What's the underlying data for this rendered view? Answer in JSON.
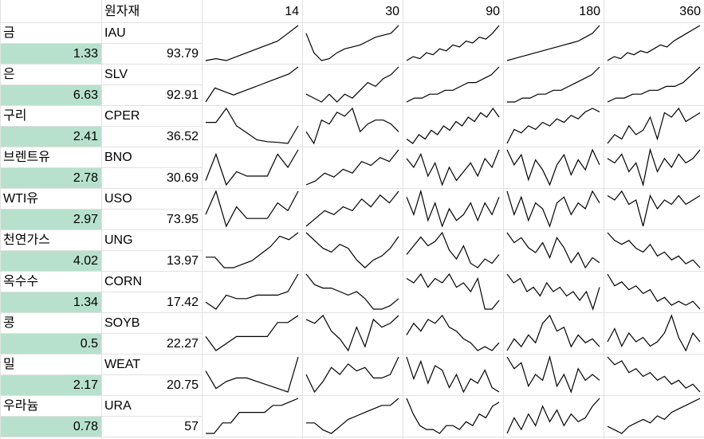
{
  "header": {
    "label": "원자재",
    "periods": [
      "14",
      "30",
      "90",
      "180",
      "360"
    ]
  },
  "rows": [
    {
      "name": "금",
      "change": 1.33,
      "ticker": "IAU",
      "price": 93.79,
      "sparklines": [
        [
          1,
          1.5,
          1,
          2,
          3,
          4,
          5,
          6,
          8,
          10
        ],
        [
          8,
          3,
          1,
          1.5,
          3,
          4,
          4.5,
          5,
          6,
          7,
          7.5,
          8,
          10
        ],
        [
          1,
          2,
          1.5,
          3,
          2.5,
          4,
          3.5,
          5,
          4.5,
          6,
          5.5,
          7,
          6.5,
          8,
          10
        ],
        [
          1,
          1.5,
          2,
          2.5,
          3,
          3.5,
          4,
          4.5,
          5,
          5.5,
          6,
          7,
          8,
          10
        ],
        [
          1,
          2,
          1.5,
          3,
          2.5,
          3.5,
          3,
          4,
          5,
          4.5,
          6,
          7,
          8,
          9,
          10
        ]
      ]
    },
    {
      "name": "은",
      "change": 6.63,
      "ticker": "SLV",
      "price": 92.91,
      "sparklines": [
        [
          0,
          4,
          3,
          2,
          3,
          4,
          5,
          6,
          7,
          8,
          10
        ],
        [
          3,
          2,
          1,
          3,
          1,
          3,
          2,
          4,
          6,
          5,
          7,
          8,
          10
        ],
        [
          1,
          2,
          2,
          3,
          3,
          4,
          4,
          5,
          6,
          6,
          7,
          8,
          10
        ],
        [
          1,
          1,
          2,
          2,
          3,
          3,
          4,
          4,
          5,
          6,
          7,
          8,
          10
        ],
        [
          1,
          2,
          2,
          3,
          3,
          4,
          4,
          5,
          5,
          6,
          8,
          10
        ]
      ]
    },
    {
      "name": "구리",
      "change": 2.41,
      "ticker": "CPER",
      "price": 36.52,
      "sparklines": [
        [
          6,
          6,
          10,
          5,
          3,
          1,
          0.5,
          0.3,
          0,
          5
        ],
        [
          3,
          0,
          6,
          5,
          8,
          7,
          9,
          3,
          5,
          6,
          6,
          5,
          3
        ],
        [
          2,
          1,
          3,
          2,
          4,
          3,
          5,
          4,
          6,
          5,
          7,
          6,
          8,
          7,
          9,
          7
        ],
        [
          0,
          4,
          3,
          5,
          4,
          6,
          5,
          7,
          6,
          8,
          7,
          9,
          10,
          9
        ],
        [
          2,
          4,
          3,
          6,
          4,
          5,
          8,
          3,
          9,
          8,
          10,
          7,
          8,
          9
        ]
      ]
    },
    {
      "name": "브렌트유",
      "change": 2.78,
      "ticker": "BNO",
      "price": 30.69,
      "sparklines": [
        [
          3,
          9,
          2,
          5,
          4,
          4,
          4,
          9,
          6,
          10
        ],
        [
          1,
          2,
          4,
          3,
          5,
          4,
          7,
          6,
          8,
          7,
          10
        ],
        [
          8,
          6,
          9,
          4,
          7,
          2,
          6,
          3,
          5,
          7,
          4,
          8,
          6,
          10
        ],
        [
          9,
          6,
          8,
          3,
          7,
          5,
          2,
          6,
          8,
          4,
          7,
          5,
          9,
          6
        ],
        [
          7,
          6,
          8,
          4,
          6,
          1,
          9,
          4,
          7,
          5,
          8,
          6,
          7,
          9
        ]
      ]
    },
    {
      "name": "WTI유",
      "change": 2.97,
      "ticker": "USO",
      "price": 73.95,
      "sparklines": [
        [
          4,
          10,
          1,
          6,
          3,
          3,
          3,
          7,
          5,
          10
        ],
        [
          1,
          3,
          5,
          4,
          6,
          5,
          8,
          6,
          9,
          7,
          10
        ],
        [
          8,
          5,
          9,
          4,
          7,
          3,
          6,
          4,
          5,
          7,
          4,
          7,
          5,
          8
        ],
        [
          9,
          5,
          8,
          4,
          7,
          6,
          3,
          7,
          8,
          5,
          7,
          6,
          9,
          7
        ],
        [
          8,
          7,
          9,
          6,
          7,
          1,
          8,
          5,
          7,
          6,
          8,
          6,
          7,
          8
        ]
      ]
    },
    {
      "name": "천연가스",
      "change": 4.02,
      "ticker": "UNG",
      "price": 13.97,
      "sparklines": [
        [
          3,
          3,
          0,
          0,
          1,
          2,
          4,
          6,
          9,
          8,
          10
        ],
        [
          10,
          8,
          6,
          5,
          7,
          6,
          3,
          1,
          3,
          4,
          6,
          9
        ],
        [
          5,
          7,
          9,
          7,
          8,
          10,
          6,
          4,
          7,
          3,
          2,
          4,
          3,
          5
        ],
        [
          9,
          7,
          8,
          6,
          5,
          7,
          4,
          8,
          6,
          3,
          5,
          2,
          4,
          3
        ],
        [
          10,
          8,
          7,
          8,
          6,
          5,
          7,
          4,
          5,
          3,
          4,
          2,
          3,
          1
        ]
      ]
    },
    {
      "name": "옥수수",
      "change": 1.34,
      "ticker": "CORN",
      "price": 17.42,
      "sparklines": [
        [
          2,
          0,
          4,
          3,
          3,
          4,
          4,
          4,
          5,
          10
        ],
        [
          10,
          7,
          6,
          6,
          5,
          4,
          5,
          3,
          0,
          0,
          1,
          3
        ],
        [
          8,
          7,
          9,
          6,
          8,
          7,
          9,
          6,
          7,
          5,
          8,
          1,
          1,
          3
        ],
        [
          9,
          7,
          8,
          5,
          6,
          4,
          7,
          5,
          6,
          4,
          5,
          3,
          5,
          1,
          6
        ],
        [
          10,
          7,
          8,
          6,
          7,
          5,
          6,
          3,
          4,
          2,
          3,
          2,
          3,
          1
        ]
      ]
    },
    {
      "name": "콩",
      "change": 0.5,
      "ticker": "SOYB",
      "price": 22.27,
      "sparklines": [
        [
          4,
          0,
          2,
          4,
          4,
          4,
          4,
          8,
          8,
          10
        ],
        [
          9,
          8,
          10,
          6,
          4,
          1,
          7,
          2,
          9,
          7,
          8,
          10
        ],
        [
          5,
          8,
          6,
          9,
          8,
          10,
          7,
          6,
          4,
          3,
          1,
          2,
          1,
          3
        ],
        [
          1,
          4,
          2,
          5,
          3,
          8,
          10,
          6,
          7,
          2,
          5,
          3,
          4,
          2
        ],
        [
          4,
          7,
          3,
          6,
          4,
          5,
          3,
          4,
          6,
          10,
          5,
          2,
          6,
          4
        ]
      ]
    },
    {
      "name": "밀",
      "change": 2.17,
      "ticker": "WEAT",
      "price": 20.75,
      "sparklines": [
        [
          6,
          1,
          3,
          4,
          4,
          3,
          2,
          1,
          0,
          10
        ],
        [
          5,
          0,
          3,
          7,
          5,
          8,
          6,
          7,
          4,
          4,
          5,
          10
        ],
        [
          10,
          5,
          9,
          4,
          8,
          7,
          3,
          6,
          2,
          5,
          4,
          7,
          3,
          2
        ],
        [
          9,
          7,
          8,
          4,
          6,
          5,
          9,
          4,
          6,
          3,
          7,
          5,
          6,
          5
        ],
        [
          10,
          8,
          9,
          6,
          7,
          5,
          6,
          4,
          5,
          3,
          4,
          2,
          3,
          1
        ]
      ]
    },
    {
      "name": "우라늄",
      "change": 0.78,
      "ticker": "URA",
      "price": 57,
      "sparklines": [
        [
          0,
          0,
          3,
          3,
          6,
          6,
          6,
          6,
          8,
          8,
          9,
          10
        ],
        [
          3,
          3,
          1,
          0,
          2,
          4,
          5,
          6,
          7,
          8,
          8,
          10
        ],
        [
          10,
          6,
          3,
          2,
          2,
          1,
          3,
          3,
          2,
          4,
          3,
          6,
          5,
          8,
          9
        ],
        [
          1,
          5,
          2,
          6,
          3,
          8,
          4,
          7,
          3,
          6,
          4,
          5,
          8,
          10
        ],
        [
          2,
          1,
          0,
          2,
          3,
          4,
          3,
          5,
          4,
          6,
          7,
          8,
          9,
          10
        ]
      ]
    }
  ]
}
